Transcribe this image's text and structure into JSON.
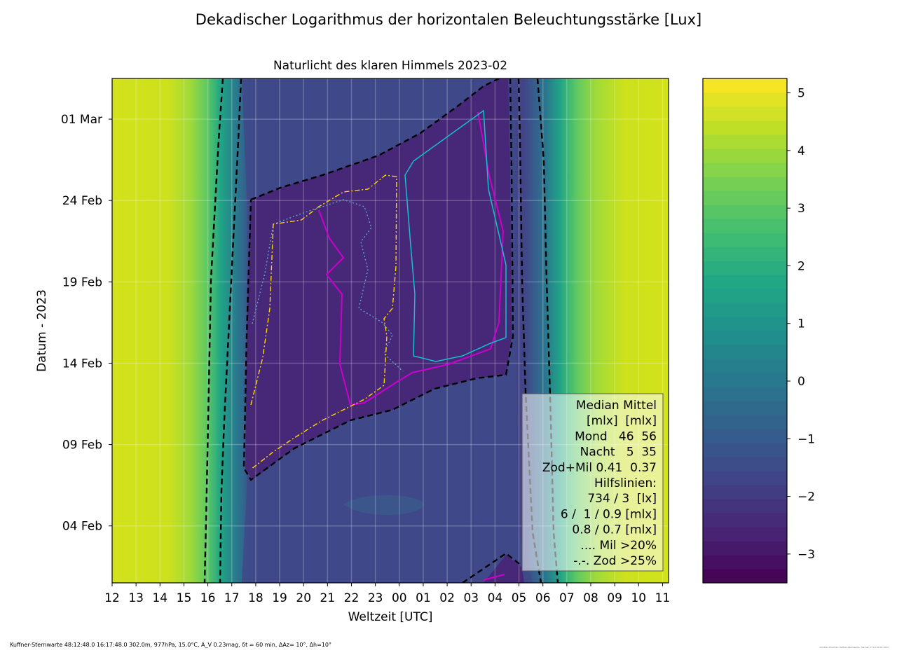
{
  "chart_data": {
    "type": "heatmap",
    "suptitle": "Dekadischer Logarithmus der horizontalen Beleuchtungsstärke [Lux]",
    "title": "Naturlicht des klaren Himmels 2023-02",
    "xlabel": "Weltzeit [UTC]",
    "ylabel": "Datum - 2023",
    "x_ticks": [
      "12",
      "13",
      "14",
      "15",
      "16",
      "17",
      "18",
      "19",
      "20",
      "21",
      "22",
      "23",
      "00",
      "01",
      "02",
      "03",
      "04",
      "05",
      "06",
      "07",
      "08",
      "09",
      "10",
      "11"
    ],
    "y_ticks": [
      {
        "label": "01 Mar",
        "day": 29
      },
      {
        "label": "24 Feb",
        "day": 24
      },
      {
        "label": "19 Feb",
        "day": 19
      },
      {
        "label": "14 Feb",
        "day": 14
      },
      {
        "label": "09 Feb",
        "day": 9
      },
      {
        "label": "04 Feb",
        "day": 4
      }
    ],
    "x_range_hours": [
      12,
      35.25
    ],
    "y_range_days": [
      0.5,
      31.5
    ],
    "colorbar": {
      "ticks": [
        "5",
        "4",
        "3",
        "2",
        "1",
        "0",
        "−1",
        "−2",
        "−3"
      ],
      "tick_values": [
        5,
        4,
        3,
        2,
        1,
        0,
        -1,
        -2,
        -3
      ],
      "range": [
        -3.5,
        5.25
      ],
      "colormap": "viridis"
    },
    "contour_lines": {
      "dashed_black": "Hilfslinien 734 / 3 lx",
      "magenta": "6 / 1 mlx",
      "cyan": "0.9 / 0.8 / 0.7 mlx",
      "dotted": "Mil >20%",
      "dash_dot_yellow": "Zod >25%"
    },
    "grid": true
  },
  "legend_lines": [
    "Median Mittel",
    "[mlx]  [mlx]",
    "Mond   46  56",
    "Nacht   5  35",
    "Zod+Mil 0.41  0.37",
    "Hilfslinien:",
    "734 / 3  [lx]",
    "6 /  1 / 0.9 [mlx]",
    "0.8 / 0.7 [mlx]",
    ".... Mil >20%",
    "-.-. Zod >25%"
  ],
  "footer": "Kuffner-Sternwarte 48:12:48.0 16:17:48.0 302.0m,  977hPa, 15.0°C, A_V 0.23mag, δt = 60 min, ΔAz= 10°, Δh=10°",
  "credit": "Günther Wuchterl, Kuffner-Sternwarte, Tue Dec 27 18:00:03 2022"
}
